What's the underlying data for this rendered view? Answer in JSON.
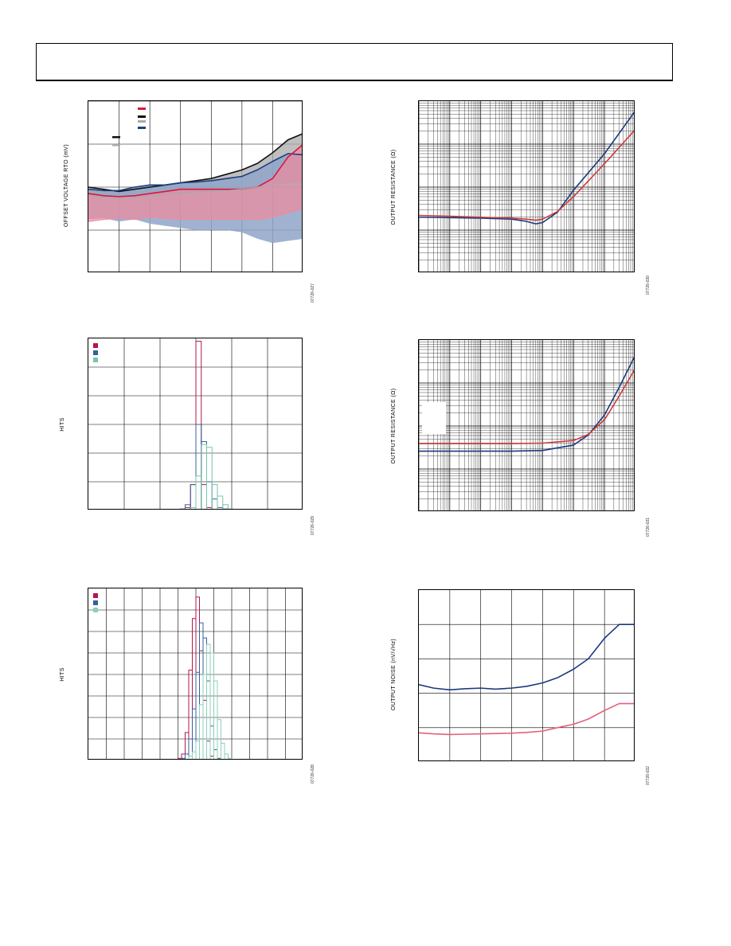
{
  "charts": {
    "offset": {
      "ylabel": "OFFSET VOLTAGE RTO (mV)",
      "figure_id": "07726-027",
      "colors": {
        "red": "#d8173f",
        "black": "#111111",
        "gray": "#aaaaaa",
        "blue": "#1c3f7e",
        "pink": "#f08a9e",
        "lightblue": "#8fa4c8"
      }
    },
    "rout1": {
      "ylabel": "OUTPUT RESISTANCE (Ω)",
      "figure_id": "07726-030",
      "colors": {
        "blue": "#1a3a7e",
        "red": "#cc3b3b"
      }
    },
    "hist1": {
      "ylabel": "HITS",
      "figure_id": "07726-029",
      "colors": {
        "red": "#b5164a",
        "blue": "#3a5f9a",
        "teal": "#79c4ac"
      }
    },
    "rout2": {
      "ylabel": "OUTPUT RESISTANCE (Ω)",
      "figure_id": "07726-031",
      "colors": {
        "blue": "#1a3a7e",
        "red": "#cc3b3b"
      }
    },
    "hist2": {
      "ylabel": "HITS",
      "figure_id": "07726-028",
      "colors": {
        "red": "#b5164a",
        "blue": "#3a5f9a",
        "teal": "#8ccfbc"
      }
    },
    "noise": {
      "ylabel": "OUTPUT NOISE (nV/√Hz)",
      "figure_id": "07726-032",
      "colors": {
        "blue": "#1a3a7e",
        "pink": "#e4607a"
      }
    }
  },
  "chart_data": [
    {
      "type": "area",
      "name": "offset-voltage",
      "x": [
        0,
        0.5,
        1,
        1.5,
        2,
        2.5,
        3,
        3.5,
        4,
        4.5,
        5,
        5.5,
        6,
        6.5,
        7
      ],
      "series": [
        {
          "color": "black",
          "upper": [
            1.0,
            0.95,
            0.9,
            0.95,
            1.0,
            1.05,
            1.1,
            1.15,
            1.2,
            1.3,
            1.4,
            1.55,
            1.8,
            2.1,
            2.25
          ]
        },
        {
          "color": "gray",
          "lower": [
            0.8,
            0.75,
            0.72,
            0.75,
            0.78,
            0.82,
            0.85,
            0.88,
            0.9,
            0.92,
            0.95,
            1.0,
            1.05,
            1.1,
            1.1
          ]
        },
        {
          "color": "blue",
          "upper": [
            0.95,
            0.92,
            0.92,
            1.0,
            1.05,
            1.05,
            1.1,
            1.12,
            1.15,
            1.2,
            1.25,
            1.4,
            1.6,
            1.78,
            1.75
          ]
        },
        {
          "color": "lightblue",
          "lower": [
            0.25,
            0.28,
            0.2,
            0.25,
            0.15,
            0.1,
            0.05,
            0.0,
            0.0,
            0.0,
            -0.05,
            -0.2,
            -0.3,
            -0.25,
            -0.2
          ]
        },
        {
          "color": "red",
          "upper": [
            0.85,
            0.8,
            0.78,
            0.8,
            0.85,
            0.9,
            0.95,
            0.95,
            0.95,
            0.95,
            0.95,
            1.0,
            1.2,
            1.7,
            2.0
          ]
        },
        {
          "color": "pink",
          "lower": [
            0.2,
            0.25,
            0.28,
            0.25,
            0.3,
            0.28,
            0.25,
            0.25,
            0.25,
            0.25,
            0.25,
            0.25,
            0.3,
            0.4,
            0.5
          ]
        }
      ],
      "xlim": [
        0,
        7
      ],
      "ylim": [
        -1,
        3
      ]
    },
    {
      "type": "line",
      "name": "output-resistance-1",
      "xscale": "log",
      "yscale": "log",
      "xlim": [
        10,
        100000000
      ],
      "ylim": [
        0.1,
        1000
      ],
      "series": [
        {
          "color": "blue",
          "x": [
            10,
            100,
            1000,
            10000,
            30000,
            60000,
            100000,
            300000,
            1000000,
            10000000,
            100000000
          ],
          "y": [
            2.0,
            1.95,
            1.9,
            1.8,
            1.6,
            1.4,
            1.5,
            2.6,
            8.5,
            60,
            600
          ]
        },
        {
          "color": "red",
          "x": [
            10,
            100,
            1000,
            10000,
            30000,
            60000,
            100000,
            300000,
            1000000,
            10000000,
            100000000
          ],
          "y": [
            2.2,
            2.1,
            2.0,
            1.9,
            1.8,
            1.7,
            1.8,
            2.7,
            6.0,
            35,
            220
          ]
        }
      ]
    },
    {
      "type": "bar",
      "name": "hits-histogram-1",
      "xlim": [
        -6,
        6
      ],
      "ylim": [
        0,
        6
      ],
      "bins": [
        -1.2,
        -0.9,
        -0.6,
        -0.3,
        0,
        0.3,
        0.6,
        0.9,
        1.2,
        1.5,
        1.8,
        2.1
      ],
      "series": [
        {
          "color": "red",
          "values": [
            0,
            0,
            0.1,
            0.9,
            5.9,
            0.9,
            0.1,
            0,
            0,
            0,
            0,
            0
          ]
        },
        {
          "color": "blue",
          "values": [
            0,
            0.05,
            0.2,
            0.9,
            3.0,
            2.4,
            1.0,
            0.4,
            0.1,
            0.05,
            0,
            0
          ]
        },
        {
          "color": "teal",
          "values": [
            0,
            0,
            0,
            0.1,
            1.2,
            2.3,
            2.2,
            0.9,
            0.5,
            0.2,
            0.05,
            0.02
          ]
        }
      ]
    },
    {
      "type": "line",
      "name": "output-resistance-2",
      "xscale": "log",
      "yscale": "log",
      "xlim": [
        10,
        100000000
      ],
      "ylim": [
        0.1,
        1000
      ],
      "series": [
        {
          "color": "blue",
          "x": [
            10,
            100,
            1000,
            10000,
            100000,
            1000000,
            3000000,
            10000000,
            30000000,
            100000000
          ],
          "y": [
            2.6,
            2.6,
            2.6,
            2.6,
            2.7,
            3.6,
            6.2,
            18,
            80,
            450
          ]
        },
        {
          "color": "red",
          "x": [
            10,
            100,
            1000,
            10000,
            100000,
            1000000,
            3000000,
            10000000,
            30000000,
            100000000
          ],
          "y": [
            3.9,
            3.9,
            3.9,
            3.9,
            4.0,
            4.6,
            6.4,
            14,
            50,
            220
          ]
        }
      ]
    },
    {
      "type": "bar",
      "name": "hits-histogram-2",
      "xlim": [
        -6,
        6
      ],
      "ylim": [
        0,
        8
      ],
      "bins": [
        -1.2,
        -1.0,
        -0.8,
        -0.6,
        -0.4,
        -0.2,
        0,
        0.2,
        0.4,
        0.6,
        0.8,
        1.0,
        1.2,
        1.4,
        1.6,
        1.8,
        2.0,
        2.2
      ],
      "series": [
        {
          "color": "red",
          "values": [
            0,
            0.1,
            0.3,
            1.3,
            4.2,
            6.6,
            7.6,
            5.1,
            2.8,
            0.9,
            0.2,
            0.05,
            0,
            0,
            0,
            0,
            0,
            0
          ]
        },
        {
          "color": "blue",
          "values": [
            0,
            0.05,
            0.1,
            0.3,
            1.0,
            2.4,
            4.1,
            6.4,
            5.7,
            3.7,
            1.6,
            0.5,
            0.1,
            0.05,
            0,
            0,
            0,
            0
          ]
        },
        {
          "color": "teal",
          "values": [
            0,
            0,
            0,
            0.05,
            0.2,
            0.4,
            0.9,
            2.6,
            4.0,
            5.4,
            5.0,
            3.7,
            1.9,
            0.8,
            0.3,
            0.1,
            0.05,
            0
          ]
        }
      ]
    },
    {
      "type": "line",
      "name": "output-noise",
      "xscale": "log",
      "xlim": [
        10,
        100000000
      ],
      "ylim": [
        0,
        50
      ],
      "series": [
        {
          "color": "blue",
          "x": [
            10,
            30,
            100,
            300,
            1000,
            3000,
            10000,
            30000,
            100000,
            300000,
            1000000,
            3000000,
            10000000,
            30000000,
            100000000
          ],
          "y": [
            22.5,
            21.5,
            21.0,
            21.3,
            21.5,
            21.2,
            21.5,
            22.0,
            23.0,
            24.5,
            27.0,
            30.0,
            36.0,
            40.0,
            40.0
          ]
        },
        {
          "color": "pink",
          "x": [
            10,
            30,
            100,
            300,
            1000,
            3000,
            10000,
            30000,
            100000,
            300000,
            1000000,
            3000000,
            10000000,
            30000000,
            100000000
          ],
          "y": [
            8.5,
            8.2,
            8.0,
            8.1,
            8.2,
            8.3,
            8.4,
            8.6,
            9.0,
            10.0,
            11.0,
            12.5,
            15.0,
            17.0,
            17.0
          ]
        }
      ]
    }
  ]
}
